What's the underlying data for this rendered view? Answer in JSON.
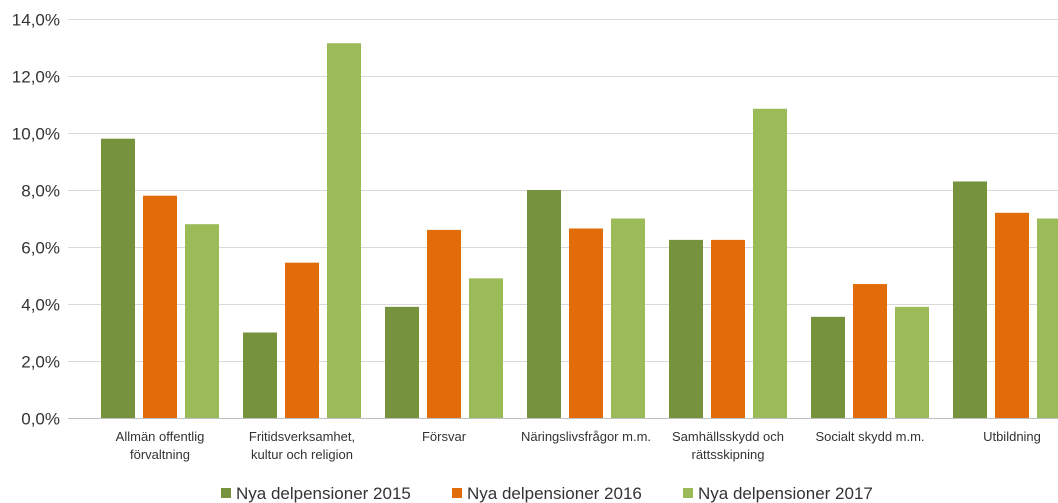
{
  "chart_data": {
    "type": "bar",
    "title": "",
    "xlabel": "",
    "ylabel": "",
    "ylim": [
      0,
      14
    ],
    "y_ticks": [
      0,
      2,
      4,
      6,
      8,
      10,
      12,
      14
    ],
    "y_tick_labels": [
      "0,0%",
      "2,0%",
      "4,0%",
      "6,0%",
      "8,0%",
      "10,0%",
      "12,0%",
      "14,0%"
    ],
    "grid": true,
    "legend_position": "bottom",
    "categories": [
      [
        "Allmän offentlig",
        "förvaltning"
      ],
      [
        "Fritidsverksamhet,",
        "kultur och religion"
      ],
      [
        "Försvar"
      ],
      [
        "Näringslivsfrågor m.m."
      ],
      [
        "Samhällsskydd och",
        "rättsskipning"
      ],
      [
        "Socialt skydd m.m."
      ],
      [
        "Utbildning"
      ]
    ],
    "series": [
      {
        "name": "Nya delpensioner 2015",
        "color": "#76923c",
        "values": [
          9.8,
          3.0,
          3.9,
          8.0,
          6.25,
          3.55,
          8.3
        ]
      },
      {
        "name": "Nya delpensioner 2016",
        "color": "#e36c0a",
        "values": [
          7.8,
          5.45,
          6.6,
          6.65,
          6.25,
          4.7,
          7.2
        ]
      },
      {
        "name": "Nya delpensioner 2017",
        "color": "#9bbb59",
        "values": [
          6.8,
          13.15,
          4.9,
          7.0,
          10.85,
          3.9,
          7.0
        ]
      }
    ]
  }
}
